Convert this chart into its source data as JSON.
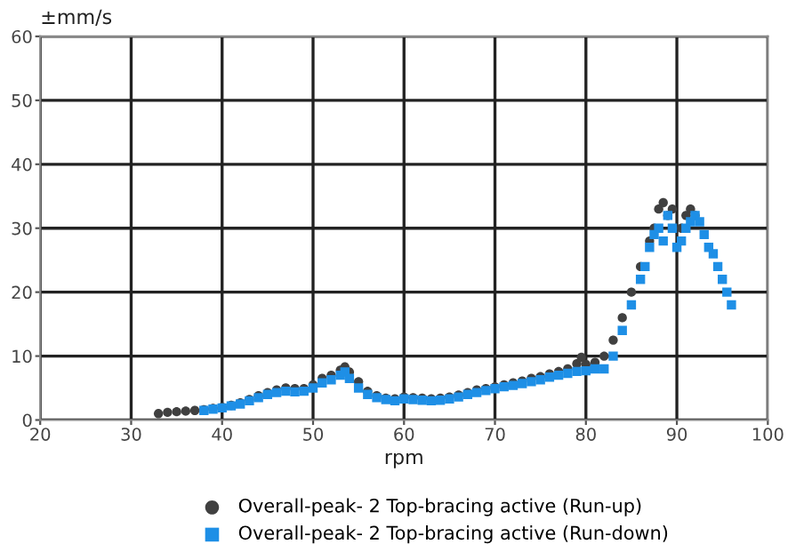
{
  "chart_data": {
    "type": "scatter",
    "xlabel": "rpm",
    "ylabel": "±mm/s",
    "xlim": [
      20,
      100
    ],
    "ylim": [
      0,
      60
    ],
    "xticks": [
      20,
      30,
      40,
      50,
      60,
      70,
      80,
      90,
      100
    ],
    "yticks": [
      0,
      10,
      20,
      30,
      40,
      50,
      60
    ],
    "grid": true,
    "legend": "bottom",
    "series": [
      {
        "name": "Overall-peak- 2 Top-bracing active (Run-up)",
        "color": "#404040",
        "marker": "circle",
        "x": [
          33,
          34,
          35,
          36,
          37,
          38,
          39,
          40,
          41,
          42,
          43,
          44,
          45,
          46,
          47,
          48,
          49,
          50,
          51,
          52,
          53,
          53.5,
          54,
          55,
          56,
          57,
          58,
          59,
          60,
          61,
          62,
          63,
          64,
          65,
          66,
          67,
          68,
          69,
          70,
          71,
          72,
          73,
          74,
          75,
          76,
          77,
          78,
          79,
          79.5,
          80,
          81,
          82,
          83,
          84,
          85,
          86,
          87,
          87.5,
          88,
          88.5,
          89,
          89.5,
          90.5,
          91,
          91.5,
          92
        ],
        "values": [
          1,
          1.2,
          1.3,
          1.4,
          1.5,
          1.6,
          1.8,
          2,
          2.3,
          2.7,
          3.2,
          3.8,
          4.3,
          4.7,
          5,
          4.9,
          4.9,
          5.5,
          6.5,
          7,
          7.8,
          8.3,
          7.5,
          6,
          4.5,
          3.8,
          3.4,
          3.3,
          3.6,
          3.5,
          3.4,
          3.3,
          3.4,
          3.6,
          3.9,
          4.3,
          4.7,
          4.9,
          5.2,
          5.5,
          5.8,
          6.1,
          6.5,
          6.8,
          7.2,
          7.6,
          8,
          8.8,
          9.8,
          8.7,
          9,
          10,
          12.5,
          16,
          20,
          24,
          28,
          30,
          33,
          34,
          32,
          33,
          30,
          32,
          33,
          32
        ]
      },
      {
        "name": "Overall-peak- 2 Top-bracing active (Run-down)",
        "color": "#1e8fe6",
        "marker": "square",
        "x": [
          38,
          39,
          40,
          41,
          42,
          43,
          44,
          45,
          46,
          47,
          48,
          49,
          50,
          51,
          52,
          53,
          53.5,
          54,
          55,
          56,
          57,
          58,
          59,
          60,
          61,
          62,
          63,
          64,
          65,
          66,
          67,
          68,
          69,
          70,
          71,
          72,
          73,
          74,
          75,
          76,
          77,
          78,
          79,
          80,
          81,
          82,
          83,
          84,
          85,
          86,
          86.5,
          87,
          87.5,
          88,
          88.5,
          89,
          89.5,
          90,
          90.5,
          91,
          91.5,
          92,
          92.5,
          93,
          93.5,
          94,
          94.5,
          95,
          95.5,
          96
        ],
        "values": [
          1.5,
          1.7,
          1.9,
          2.2,
          2.5,
          3,
          3.5,
          4,
          4.3,
          4.5,
          4.4,
          4.5,
          5,
          5.8,
          6.3,
          7,
          7.5,
          6.5,
          5,
          4,
          3.5,
          3.2,
          3,
          3.3,
          3.2,
          3.1,
          3,
          3.1,
          3.3,
          3.6,
          4,
          4.3,
          4.6,
          4.9,
          5.2,
          5.4,
          5.7,
          6,
          6.3,
          6.7,
          7,
          7.3,
          7.6,
          7.7,
          8,
          8,
          10,
          14,
          18,
          22,
          24,
          27,
          29,
          30,
          28,
          32,
          30,
          27,
          28,
          30,
          31,
          32,
          31,
          29,
          27,
          26,
          24,
          22,
          20,
          18
        ]
      }
    ]
  }
}
